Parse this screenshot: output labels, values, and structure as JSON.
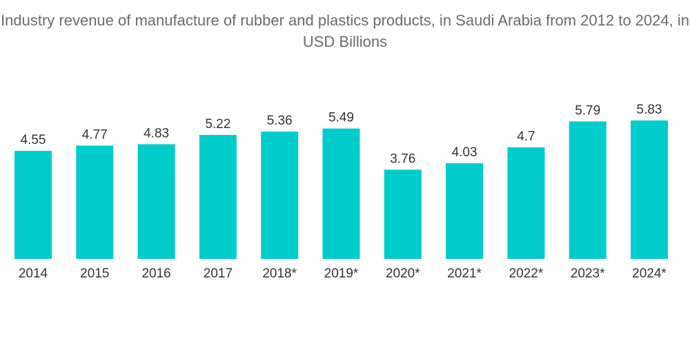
{
  "chart_data": {
    "type": "bar",
    "title": "Industry revenue of manufacture of rubber and plastics products, in Saudi Arabia from 2012 to 2024, in USD Billions",
    "categories": [
      "2014",
      "2015",
      "2016",
      "2017",
      "2018*",
      "2019*",
      "2020*",
      "2021*",
      "2022*",
      "2023*",
      "2024*"
    ],
    "values": [
      4.55,
      4.77,
      4.83,
      5.22,
      5.36,
      5.49,
      3.76,
      4.03,
      4.7,
      5.79,
      5.83
    ],
    "value_labels": [
      "4.55",
      "4.77",
      "4.83",
      "5.22",
      "5.36",
      "5.49",
      "3.76",
      "4.03",
      "4.7",
      "5.79",
      "5.83"
    ],
    "xlabel": "",
    "ylabel": "",
    "ylim": [
      0,
      5.83
    ],
    "grid": false,
    "legend": "none",
    "bar_color": "#00cccc"
  }
}
